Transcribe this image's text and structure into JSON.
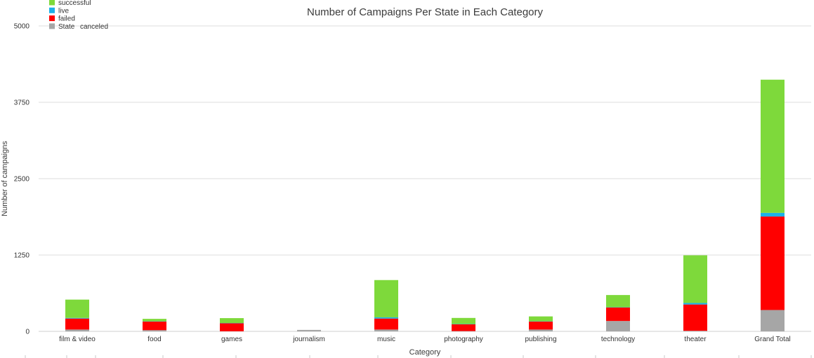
{
  "chart_data": {
    "type": "bar",
    "stacked": true,
    "title": "Number of Campaigns Per State in Each Category",
    "xlabel": "Category",
    "ylabel": "Number of campaigns",
    "ylim": [
      0,
      5000
    ],
    "yticks": [
      "0",
      "1250",
      "2500",
      "3750",
      "5000"
    ],
    "ytick_values": [
      0,
      1250,
      2500,
      3750,
      5000
    ],
    "grid": true,
    "legend_position": "top-left",
    "legend_title": "State",
    "categories": [
      "film & video",
      "food",
      "games",
      "journalism",
      "music",
      "photography",
      "publishing",
      "technology",
      "theater",
      "Grand Total"
    ],
    "series": [
      {
        "name": "canceled",
        "color": "#a6a6a6",
        "values": [
          30,
          20,
          2,
          24,
          30,
          5,
          30,
          170,
          10,
          350
        ]
      },
      {
        "name": "failed",
        "color": "#ff0000",
        "values": [
          180,
          140,
          130,
          0,
          180,
          110,
          130,
          220,
          430,
          1530
        ]
      },
      {
        "name": "live",
        "color": "#1cb1e8",
        "values": [
          10,
          5,
          5,
          0,
          20,
          5,
          5,
          5,
          25,
          60
        ]
      },
      {
        "name": "successful",
        "color": "#7ed93b",
        "values": [
          300,
          40,
          80,
          0,
          610,
          100,
          80,
          200,
          780,
          2180
        ]
      }
    ],
    "legend_order": [
      "successful",
      "live",
      "failed",
      "canceled"
    ]
  }
}
